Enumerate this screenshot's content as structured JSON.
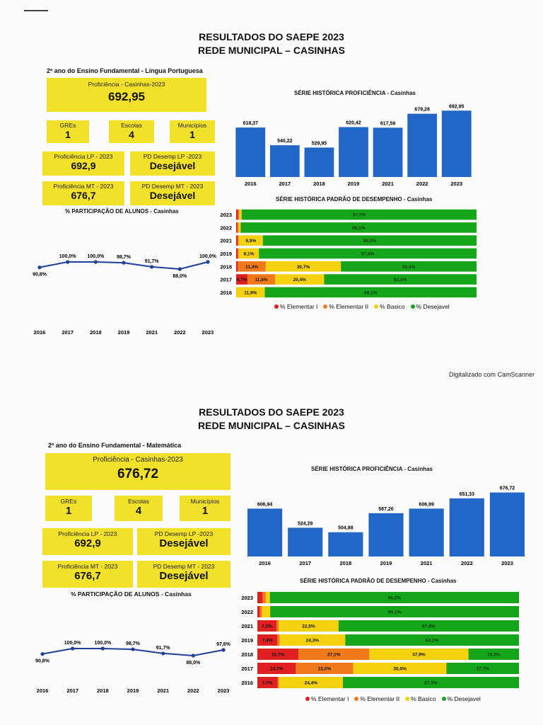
{
  "footer": "Digitalizado com CamScanner",
  "pages": [
    {
      "title_line1": "RESULTADOS DO SAEPE 2023",
      "title_line2": "REDE MUNICIPAL – CASINHAS",
      "subject": "2º ano do Ensino Fundamental - Língua Portuguesa",
      "proficiency_label": "Proficiência - Casinhas-2023",
      "proficiency_value": "692,95",
      "gres_label": "GREs",
      "gres_value": "1",
      "escolas_label": "Escolas",
      "escolas_value": "4",
      "municipios_label": "Municípios",
      "municipios_value": "1",
      "prof_lp_label": "Proficiência LP - 2023",
      "prof_lp_value": "692,9",
      "pd_lp_label": "PD Desemp LP -2023",
      "pd_lp_value": "Desejável",
      "prof_mt_label": "Proficiência MT - 2023",
      "prof_mt_value": "676,7",
      "pd_mt_label": "PD Desemp MT - 2023",
      "pd_mt_value": "Desejável",
      "participation_title": "% PARTICIPAÇÃO DE ALUNOS - Casinhas",
      "prof_series_title": "SÉRIE HISTÓRICA PROFICIÊNCIA - Casinhas",
      "pd_series_title": "SÉRIE HISTÓRICA PADRÃO DE DESEMPENHO - Casinhas",
      "legend": [
        "% Elementar I",
        "% Elementar II",
        "% Basico",
        "% Desejavel"
      ]
    },
    {
      "title_line1": "RESULTADOS DO SAEPE 2023",
      "title_line2": "REDE MUNICIPAL – CASINHAS",
      "subject": "2º ano do Ensino Fundamental - Matemática",
      "proficiency_label": "Proficiência - Casinhas-2023",
      "proficiency_value": "676,72",
      "gres_label": "GREs",
      "gres_value": "1",
      "escolas_label": "Escolas",
      "escolas_value": "4",
      "municipios_label": "Municípios",
      "municipios_value": "1",
      "prof_lp_label": "Proficiência LP - 2023",
      "prof_lp_value": "692,9",
      "pd_lp_label": "PD Desemp LP -2023",
      "pd_lp_value": "Desejável",
      "prof_mt_label": "Proficiência MT - 2023",
      "prof_mt_value": "676,7",
      "pd_mt_label": "PD Desemp MT - 2023",
      "pd_mt_value": "Desejável",
      "participation_title": "% PARTICIPAÇÃO DE ALUNOS - Casinhas",
      "prof_series_title": "SÉRIE HISTÓRICA PROFICIÊNCIA - Casinhas",
      "pd_series_title": "SÉRIE HISTÓRICA PADRÃO DE DESEMPENHO - Casinhas",
      "legend": [
        "% Elementar I",
        "% Elementar II",
        "% Basico",
        "% Desejavel"
      ]
    }
  ],
  "colors": {
    "yellow_box": "#f2e12a",
    "bar_blue": "#2266c8",
    "line_blue": "#1f3f96",
    "elementar1": "#e02020",
    "elementar2": "#f07a1a",
    "basico": "#f5d20f",
    "desejavel": "#16a51a"
  },
  "chart_data": [
    {
      "type": "bar",
      "title": "SÉRIE HISTÓRICA PROFICIÊNCIA - Casinhas",
      "categories": [
        "2016",
        "2017",
        "2018",
        "2019",
        "2021",
        "2022",
        "2023"
      ],
      "values": [
        618.37,
        540.22,
        529.95,
        620.42,
        617.59,
        679.28,
        692.95
      ],
      "labels": [
        "618,37",
        "540,22",
        "529,95",
        "620,42",
        "617,59",
        "679,28",
        "692,95"
      ],
      "ylim": [
        400,
        700
      ]
    },
    {
      "type": "line",
      "title": "% PARTICIPAÇÃO DE ALUNOS - Casinhas",
      "categories": [
        "2016",
        "2017",
        "2018",
        "2019",
        "2021",
        "2022",
        "2023"
      ],
      "values": [
        90.8,
        100.0,
        100.0,
        98.7,
        91.7,
        88.0,
        100.0
      ],
      "labels": [
        "90,8%",
        "100,0%",
        "100,0%",
        "98,7%",
        "91,7%",
        "88,0%",
        "100,0%"
      ],
      "ylim": [
        0,
        100
      ]
    },
    {
      "type": "bar",
      "stacked": true,
      "orientation": "horizontal",
      "title": "SÉRIE HISTÓRICA PADRÃO DE DESEMPENHO - Casinhas",
      "categories": [
        "2023",
        "2022",
        "2021",
        "2019",
        "2018",
        "2017",
        "2016"
      ],
      "series": [
        {
          "name": "% Elementar I",
          "values": [
            0.8,
            0.5,
            0.6,
            0.6,
            0.7,
            4.7,
            0.0
          ],
          "labels": [
            "",
            "",
            "",
            "",
            "",
            "4,7%",
            ""
          ]
        },
        {
          "name": "% Elementar II",
          "values": [
            0.5,
            0.5,
            0.5,
            0.5,
            11.4,
            11.5,
            0.0
          ],
          "labels": [
            "",
            "",
            "",
            "",
            "11,4%",
            "11,5%",
            ""
          ]
        },
        {
          "name": "% Basico",
          "values": [
            1.0,
            0.9,
            9.9,
            8.1,
            30.7,
            20.4,
            11.9
          ],
          "labels": [
            "",
            "",
            "9,9%",
            "8,1%",
            "30,7%",
            "20,4%",
            "11,9%"
          ]
        },
        {
          "name": "% Desejavel",
          "values": [
            97.7,
            98.1,
            88.0,
            87.8,
            55.4,
            63.4,
            88.1
          ],
          "labels": [
            "97,7%",
            "98,1%",
            "88,0%",
            "87,8%",
            "55,4%",
            "63,4%",
            "88,1%"
          ]
        }
      ]
    },
    {
      "type": "bar",
      "title": "SÉRIE HISTÓRICA PROFICIÊNCIA - Casinhas",
      "categories": [
        "2016",
        "2017",
        "2018",
        "2019",
        "2021",
        "2022",
        "2023"
      ],
      "values": [
        606.94,
        524.29,
        504.88,
        587.2,
        606.99,
        651.33,
        676.72
      ],
      "labels": [
        "606,94",
        "524,29",
        "504,88",
        "587,20",
        "606,99",
        "651,33",
        "676,72"
      ],
      "ylim": [
        400,
        700
      ]
    },
    {
      "type": "line",
      "title": "% PARTICIPAÇÃO DE ALUNOS - Casinhas",
      "categories": [
        "2016",
        "2017",
        "2018",
        "2019",
        "2021",
        "2022",
        "2023"
      ],
      "values": [
        90.8,
        100.0,
        100.0,
        98.7,
        91.7,
        88.0,
        97.6
      ],
      "labels": [
        "90,8%",
        "100,0%",
        "100,0%",
        "98,7%",
        "91,7%",
        "88,0%",
        "97,6%"
      ],
      "ylim": [
        0,
        100
      ]
    },
    {
      "type": "bar",
      "stacked": true,
      "orientation": "horizontal",
      "title": "SÉRIE HISTÓRICA PADRÃO DE DESEMPENHO - Casinhas",
      "categories": [
        "2023",
        "2022",
        "2021",
        "2019",
        "2018",
        "2017",
        "2016"
      ],
      "series": [
        {
          "name": "% Elementar I",
          "values": [
            2.0,
            1.0,
            7.2,
            7.4,
            15.7,
            14.7,
            7.7
          ],
          "labels": [
            "",
            "",
            "7,2%",
            "7,4%",
            "15,7%",
            "14,7%",
            "7,7%"
          ]
        },
        {
          "name": "% Elementar II",
          "values": [
            1.2,
            0.8,
            0.8,
            0.8,
            27.1,
            22.0,
            0.6
          ],
          "labels": [
            "",
            "",
            "",
            "",
            "27,1%",
            "22,0%",
            ""
          ]
        },
        {
          "name": "% Basico",
          "values": [
            1.6,
            3.1,
            22.5,
            24.3,
            37.9,
            35.6,
            24.4
          ],
          "labels": [
            "",
            "",
            "22,5%",
            "24,3%",
            "37,9%",
            "35,6%",
            "24,4%"
          ]
        },
        {
          "name": "% Desejavel",
          "values": [
            95.2,
            95.1,
            67.8,
            64.2,
            19.3,
            27.7,
            67.3
          ],
          "labels": [
            "95,2%",
            "95,1%",
            "67,8%",
            "64,2%",
            "19,3%",
            "27,7%",
            "67,3%"
          ]
        }
      ]
    }
  ]
}
